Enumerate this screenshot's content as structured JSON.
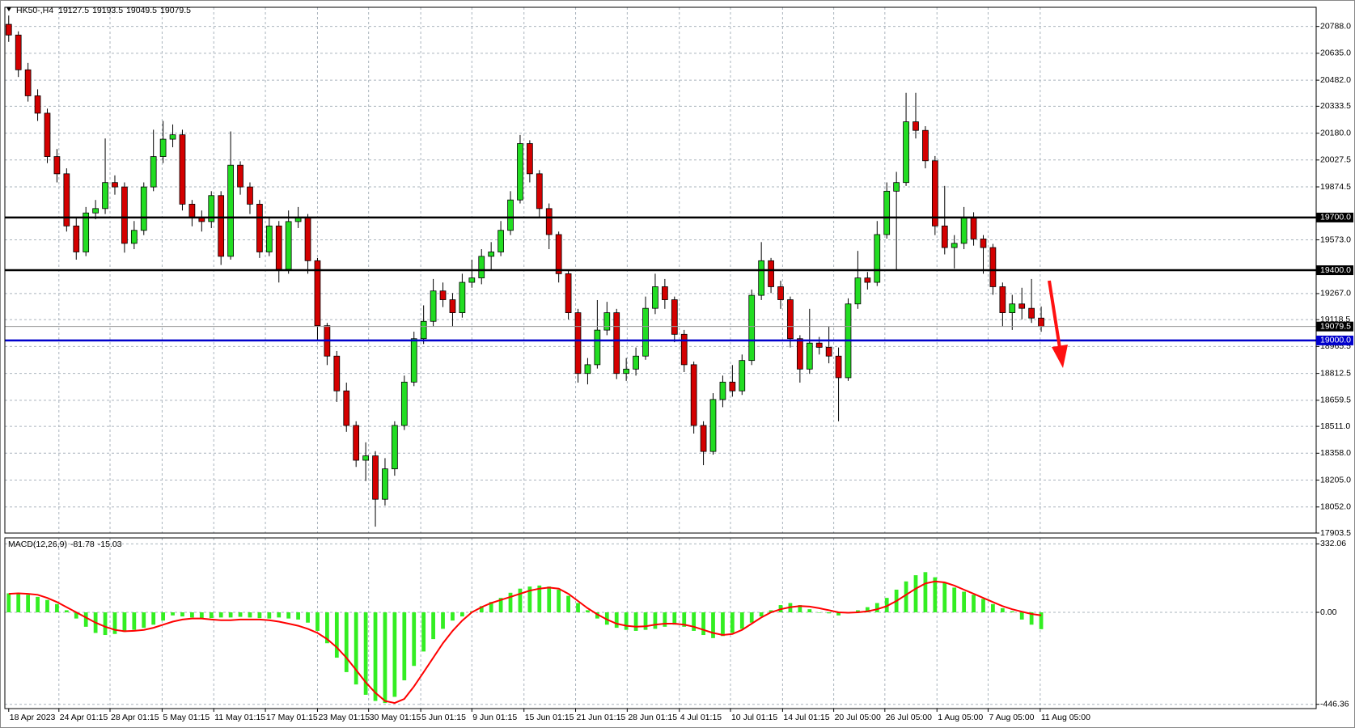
{
  "chart_data": [
    {
      "type": "candlestick",
      "title": "HK50-,H4",
      "up_color": "#22dd22",
      "down_color": "#d40000",
      "wick_color": "#000000",
      "grid": true,
      "ylim": [
        17903.5,
        20897
      ],
      "xlim": [
        -0.4,
        135.5
      ],
      "yticks": [
        {
          "value": 20788,
          "label": "20788.0"
        },
        {
          "value": 20635,
          "label": "20635.0"
        },
        {
          "value": 20482,
          "label": "20482.0"
        },
        20333.5,
        {
          "value": 20180,
          "label": "20180.0"
        },
        20027.5,
        19874.5,
        {
          "value": 19573,
          "label": "19573.0"
        },
        {
          "value": 19267,
          "label": "19267.0"
        },
        19118.5,
        18965.5,
        18812.5,
        18659.5,
        {
          "value": 18511,
          "label": "18511.0"
        },
        {
          "value": 18358,
          "label": "18358.0"
        },
        {
          "value": 18205,
          "label": "18205.0"
        },
        {
          "value": 18052,
          "label": "18052.0"
        },
        17903.5
      ],
      "xticks": [
        {
          "value": 0,
          "label": "18 Apr 2023"
        },
        {
          "value": 5.2,
          "label": "24 Apr 01:15"
        },
        {
          "value": 10.5,
          "label": "28 Apr 01:15"
        },
        {
          "value": 15.9,
          "label": "5 May 01:15"
        },
        {
          "value": 21.25,
          "label": "11 May 01:15"
        },
        {
          "value": 26.6,
          "label": "17 May 01:15"
        },
        {
          "value": 32,
          "label": "23 May 01:15"
        },
        {
          "value": 37.3,
          "label": "30 May 01:15"
        },
        {
          "value": 42.7,
          "label": "5 Jun 01:15"
        },
        {
          "value": 48,
          "label": "9 Jun 01:15"
        },
        {
          "value": 53.4,
          "label": "15 Jun 01:15"
        },
        {
          "value": 58.75,
          "label": "21 Jun 01:15"
        },
        {
          "value": 64.1,
          "label": "28 Jun 01:15"
        },
        {
          "value": 69.5,
          "label": "4 Jul 01:15"
        },
        {
          "value": 74.8,
          "label": "10 Jul 01:15"
        },
        {
          "value": 80.2,
          "label": "14 Jul 01:15"
        },
        {
          "value": 85.5,
          "label": "20 Jul 05:00"
        },
        {
          "value": 90.8,
          "label": "26 Jul 05:00"
        },
        {
          "value": 96.2,
          "label": "1 Aug 05:00"
        },
        {
          "value": 101.5,
          "label": "7 Aug 05:00"
        },
        {
          "value": 106.9,
          "label": "11 Aug 05:00"
        }
      ],
      "levels": [
        {
          "value": 19700,
          "label": "19700.0",
          "color": "#000000"
        },
        {
          "value": 19400,
          "label": "19400.0",
          "color": "#000000"
        },
        {
          "value": 19000,
          "label": "19000.0",
          "color": "#0000cc"
        }
      ],
      "price_line": {
        "value": 19079.5,
        "label": "19079.5",
        "color": "#9a9a9a"
      },
      "open": [
        20800,
        20739,
        20541,
        20393,
        20294,
        20047,
        19949,
        19652,
        19504,
        19726,
        19751,
        19899,
        19874,
        19553,
        19627,
        19874,
        20047,
        20146,
        20171,
        19776,
        19702,
        19677,
        19825,
        19479,
        19998,
        19874,
        19776,
        19504,
        19652,
        19405,
        19677,
        19702,
        19454,
        19084,
        18911,
        18713,
        18516,
        18318,
        18343,
        18096,
        18269,
        18516,
        18763,
        19010,
        19109,
        19282,
        19232,
        19158,
        19331,
        19356,
        19479,
        19504,
        19627,
        19800,
        20121,
        19949,
        19751,
        19603,
        19380,
        19158,
        18812,
        18862,
        19059,
        19158,
        18812,
        18837,
        18911,
        19183,
        19306,
        19232,
        19035,
        18862,
        18516,
        18368,
        18664,
        18763,
        18713,
        18886,
        19257,
        19454,
        19306,
        19232,
        19010,
        18837,
        18985,
        18961,
        18911,
        18788,
        19208,
        19356,
        19331,
        19603,
        19850,
        19899,
        20245,
        20196,
        20023,
        19652,
        19529,
        19553,
        19702,
        19578,
        19529,
        19306,
        19158,
        19208,
        19183,
        19127.5
      ],
      "high": [
        20850,
        20760,
        20580,
        20430,
        20320,
        20090,
        19980,
        19700,
        19760,
        19800,
        20150,
        19940,
        19900,
        19680,
        19900,
        20200,
        20250,
        20230,
        20200,
        19800,
        19740,
        19850,
        19850,
        20190,
        20020,
        19900,
        19800,
        19700,
        19680,
        19740,
        19760,
        19720,
        19470,
        19100,
        18940,
        18760,
        18540,
        18420,
        18370,
        18330,
        18540,
        18800,
        19050,
        19200,
        19350,
        19330,
        19270,
        19380,
        19460,
        19520,
        19560,
        19680,
        19850,
        20170,
        20140,
        19970,
        19780,
        19620,
        19400,
        19180,
        18900,
        19230,
        19220,
        19180,
        18900,
        18960,
        19250,
        19380,
        19350,
        19250,
        19060,
        18880,
        18540,
        18700,
        18800,
        18860,
        18920,
        19290,
        19560,
        19470,
        19340,
        19250,
        19030,
        19180,
        19020,
        19080,
        18960,
        19240,
        19510,
        19390,
        19680,
        19900,
        19960,
        20410,
        20410,
        20220,
        20050,
        19880,
        19600,
        19760,
        19730,
        19600,
        19550,
        19330,
        19260,
        19300,
        19350,
        19193.5
      ],
      "low": [
        20700,
        20500,
        20360,
        20250,
        20010,
        19900,
        19620,
        19460,
        19480,
        19690,
        19720,
        19830,
        19500,
        19520,
        19600,
        19850,
        20010,
        20100,
        19740,
        19650,
        19620,
        19640,
        19430,
        19460,
        19830,
        19720,
        19470,
        19480,
        19330,
        19380,
        19640,
        19380,
        19000,
        18860,
        18650,
        18480,
        18280,
        18200,
        17940,
        18060,
        18230,
        18490,
        18740,
        18980,
        19080,
        19190,
        19080,
        19130,
        19300,
        19320,
        19400,
        19480,
        19600,
        19780,
        19900,
        19700,
        19520,
        19330,
        19120,
        18760,
        18750,
        18840,
        19030,
        18780,
        18770,
        18800,
        18890,
        19150,
        19180,
        18990,
        18820,
        18470,
        18290,
        18350,
        18620,
        18680,
        18690,
        18860,
        19230,
        19270,
        19180,
        18960,
        18760,
        18810,
        18920,
        18870,
        18540,
        18770,
        19180,
        19290,
        19310,
        19580,
        19400,
        19880,
        20150,
        19980,
        19600,
        19490,
        19410,
        19520,
        19540,
        19380,
        19260,
        19080,
        19060,
        19120,
        19100,
        19049.5
      ],
      "close": [
        20739,
        20541,
        20393,
        20294,
        20047,
        19949,
        19652,
        19504,
        19726,
        19751,
        19899,
        19874,
        19553,
        19627,
        19874,
        20047,
        20146,
        20171,
        19776,
        19702,
        19677,
        19825,
        19479,
        19998,
        19874,
        19776,
        19504,
        19652,
        19405,
        19677,
        19702,
        19454,
        19084,
        18911,
        18713,
        18516,
        18318,
        18343,
        18096,
        18269,
        18516,
        18763,
        19010,
        19109,
        19282,
        19232,
        19158,
        19331,
        19356,
        19479,
        19504,
        19627,
        19800,
        20121,
        19949,
        19751,
        19603,
        19380,
        19158,
        18812,
        18862,
        19059,
        19158,
        18812,
        18837,
        18911,
        19183,
        19306,
        19232,
        19035,
        18862,
        18516,
        18368,
        18664,
        18763,
        18713,
        18886,
        19257,
        19454,
        19306,
        19232,
        19010,
        18837,
        18985,
        18961,
        18911,
        18788,
        19208,
        19356,
        19331,
        19603,
        19850,
        19899,
        20245,
        20196,
        20023,
        19652,
        19529,
        19553,
        19702,
        19578,
        19529,
        19306,
        19158,
        19208,
        19183,
        19127.5,
        19079.5
      ]
    },
    {
      "type": "macd",
      "title": "MACD(12,26,9)",
      "grid": true,
      "ylim": [
        -467,
        361
      ],
      "xlim": [
        -0.4,
        135.5
      ],
      "yticks": [
        332.06,
        {
          "value": 0,
          "label": "0.00"
        },
        -446.36
      ],
      "series": [
        {
          "style": "histogram",
          "color": "#33ee22",
          "values": [
            92,
            88,
            85,
            75,
            60,
            40,
            10,
            -30,
            -70,
            -100,
            -110,
            -105,
            -95,
            -85,
            -75,
            -60,
            -40,
            -15,
            -20,
            -25,
            -30,
            -28,
            -25,
            -25,
            -22,
            -25,
            -28,
            -30,
            -25,
            -30,
            -35,
            -50,
            -90,
            -150,
            -220,
            -290,
            -350,
            -400,
            -430,
            -440,
            -410,
            -330,
            -260,
            -190,
            -130,
            -80,
            -40,
            -20,
            5,
            30,
            50,
            70,
            95,
            115,
            125,
            130,
            125,
            110,
            80,
            45,
            10,
            -30,
            -60,
            -75,
            -85,
            -90,
            -85,
            -80,
            -70,
            -60,
            -70,
            -90,
            -110,
            -125,
            -115,
            -100,
            -80,
            -50,
            -20,
            10,
            35,
            45,
            35,
            15,
            0,
            -5,
            -15,
            -5,
            10,
            25,
            45,
            70,
            110,
            150,
            180,
            195,
            170,
            145,
            120,
            100,
            85,
            65,
            40,
            20,
            5,
            -35,
            -60,
            -81.78
          ]
        },
        {
          "style": "line",
          "color": "#ff0000",
          "values": [
            90,
            92,
            90,
            85,
            70,
            50,
            25,
            0,
            -25,
            -50,
            -70,
            -85,
            -92,
            -90,
            -85,
            -75,
            -60,
            -45,
            -35,
            -30,
            -30,
            -35,
            -38,
            -38,
            -35,
            -35,
            -35,
            -38,
            -45,
            -55,
            -65,
            -80,
            -100,
            -130,
            -170,
            -220,
            -280,
            -340,
            -390,
            -430,
            -440,
            -420,
            -360,
            -290,
            -220,
            -150,
            -90,
            -40,
            0,
            25,
            45,
            60,
            75,
            90,
            105,
            115,
            120,
            115,
            90,
            55,
            20,
            -10,
            -35,
            -55,
            -65,
            -70,
            -68,
            -60,
            -55,
            -55,
            -60,
            -70,
            -85,
            -100,
            -110,
            -105,
            -85,
            -55,
            -25,
            0,
            15,
            25,
            30,
            28,
            20,
            10,
            0,
            -2,
            0,
            5,
            15,
            30,
            55,
            85,
            115,
            140,
            150,
            145,
            130,
            110,
            90,
            70,
            50,
            30,
            15,
            3,
            -8,
            -15.03
          ]
        }
      ]
    }
  ]
}
